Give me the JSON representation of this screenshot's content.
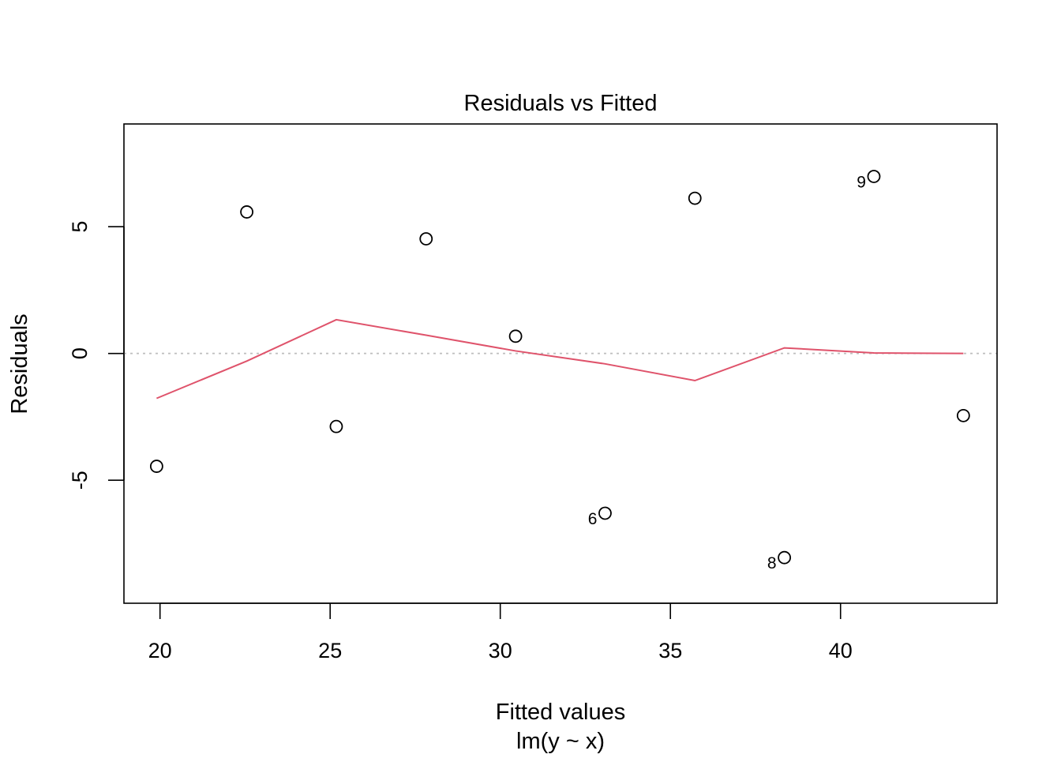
{
  "chart_data": {
    "type": "scatter",
    "title": "Residuals vs Fitted",
    "xlabel": "Fitted values",
    "xsublabel": "lm(y ~ x)",
    "ylabel": "Residuals",
    "xlim": [
      18.94,
      44.6
    ],
    "ylim": [
      -9.85,
      9.05
    ],
    "xticks": [
      20,
      25,
      30,
      35,
      40
    ],
    "yticks": [
      -5,
      0,
      5
    ],
    "grid": false,
    "points": [
      {
        "x": 19.9,
        "y": -4.45,
        "label": ""
      },
      {
        "x": 22.55,
        "y": 5.58,
        "label": ""
      },
      {
        "x": 25.18,
        "y": -2.88,
        "label": ""
      },
      {
        "x": 27.82,
        "y": 4.52,
        "label": ""
      },
      {
        "x": 30.45,
        "y": 0.68,
        "label": ""
      },
      {
        "x": 33.08,
        "y": -6.3,
        "label": "6"
      },
      {
        "x": 35.72,
        "y": 6.12,
        "label": ""
      },
      {
        "x": 38.35,
        "y": -8.05,
        "label": "8"
      },
      {
        "x": 40.98,
        "y": 6.98,
        "label": "9"
      },
      {
        "x": 43.61,
        "y": -2.45,
        "label": ""
      }
    ],
    "smooth": {
      "name": "",
      "x": [
        19.9,
        22.55,
        25.18,
        27.82,
        30.45,
        33.08,
        35.72,
        38.35,
        40.98,
        43.61
      ],
      "y": [
        -1.77,
        -0.3,
        1.33,
        0.72,
        0.1,
        -0.41,
        -1.07,
        0.22,
        0.02,
        0.0
      ]
    },
    "reference_line": {
      "y": 0
    },
    "colors": {
      "smooth": "#DF536B",
      "reference": "#BEBEBE",
      "points": "#000000"
    }
  }
}
